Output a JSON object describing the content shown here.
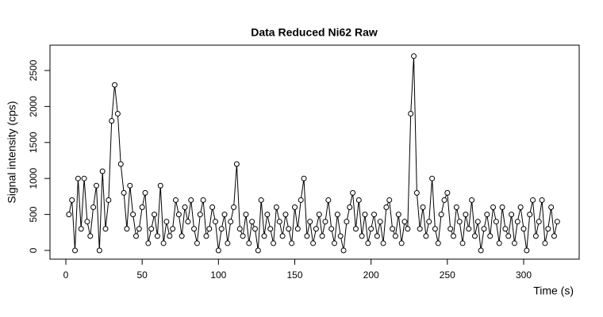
{
  "chart_data": {
    "type": "line_points",
    "title": "Data Reduced Ni62 Raw",
    "x_label": "Time (s)",
    "y_label": "Signal intensity (cps)",
    "x": [
      2,
      4,
      6,
      8,
      10,
      12,
      14,
      16,
      18,
      20,
      22,
      24,
      26,
      28,
      30,
      32,
      34,
      36,
      38,
      40,
      42,
      44,
      46,
      48,
      50,
      52,
      54,
      56,
      58,
      60,
      62,
      64,
      66,
      68,
      70,
      72,
      74,
      76,
      78,
      80,
      82,
      84,
      86,
      88,
      90,
      92,
      94,
      96,
      98,
      100,
      102,
      104,
      106,
      108,
      110,
      112,
      114,
      116,
      118,
      120,
      122,
      124,
      126,
      128,
      130,
      132,
      134,
      136,
      138,
      140,
      142,
      144,
      146,
      148,
      150,
      152,
      154,
      156,
      158,
      160,
      162,
      164,
      166,
      168,
      170,
      172,
      174,
      176,
      178,
      180,
      182,
      184,
      186,
      188,
      190,
      192,
      194,
      196,
      198,
      200,
      202,
      204,
      206,
      208,
      210,
      212,
      214,
      216,
      218,
      220,
      222,
      224,
      226,
      228,
      230,
      232,
      234,
      236,
      238,
      240,
      242,
      244,
      246,
      248,
      250,
      252,
      254,
      256,
      258,
      260,
      262,
      264,
      266,
      268,
      270,
      272,
      274,
      276,
      278,
      280,
      282,
      284,
      286,
      288,
      290,
      292,
      294,
      296,
      298,
      300,
      302,
      304,
      306,
      308,
      310,
      312,
      314,
      316,
      318,
      320,
      322
    ],
    "values": [
      500,
      700,
      0,
      1000,
      300,
      1000,
      400,
      200,
      600,
      900,
      0,
      1100,
      300,
      700,
      1800,
      2300,
      1900,
      1200,
      800,
      300,
      900,
      500,
      200,
      300,
      600,
      800,
      100,
      300,
      500,
      200,
      900,
      100,
      400,
      200,
      300,
      700,
      500,
      200,
      600,
      400,
      700,
      300,
      100,
      500,
      700,
      200,
      300,
      600,
      400,
      0,
      300,
      500,
      100,
      400,
      600,
      1200,
      300,
      200,
      500,
      100,
      400,
      300,
      0,
      700,
      200,
      500,
      300,
      100,
      600,
      400,
      200,
      500,
      300,
      100,
      600,
      300,
      700,
      1000,
      200,
      400,
      100,
      300,
      500,
      200,
      400,
      700,
      300,
      100,
      500,
      200,
      0,
      400,
      600,
      800,
      300,
      700,
      200,
      500,
      100,
      300,
      500,
      200,
      400,
      100,
      600,
      700,
      300,
      200,
      500,
      100,
      400,
      300,
      1900,
      2700,
      800,
      300,
      600,
      200,
      400,
      1000,
      300,
      100,
      500,
      700,
      800,
      300,
      200,
      600,
      400,
      100,
      500,
      300,
      700,
      200,
      400,
      0,
      300,
      500,
      200,
      600,
      400,
      100,
      600,
      300,
      200,
      500,
      100,
      400,
      600,
      300,
      0,
      500,
      700,
      200,
      400,
      700,
      100,
      300,
      600,
      200,
      400
    ],
    "color": "#000000",
    "xlim": [
      -10.4,
      336.4
    ],
    "xticks": [
      0,
      50,
      100,
      150,
      200,
      250,
      300
    ],
    "ylim": [
      -121,
      2852
    ],
    "yticks": [
      0,
      500,
      1000,
      1500,
      2000,
      2500
    ]
  }
}
